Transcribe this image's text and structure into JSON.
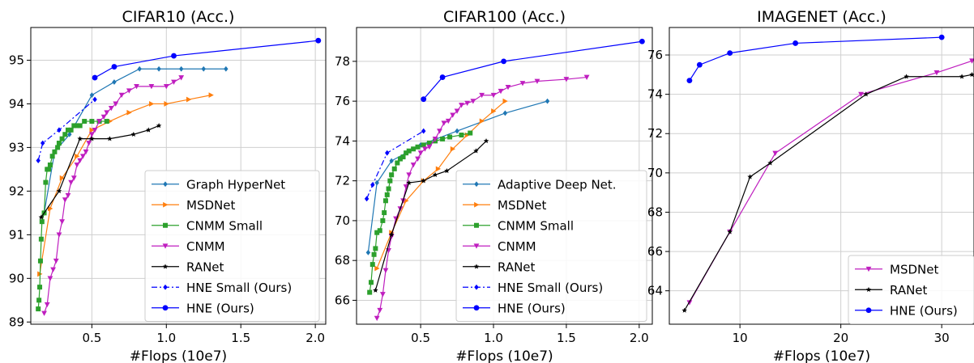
{
  "chart_data": [
    {
      "type": "line",
      "title": "CIFAR10 (Acc.)",
      "xlabel": "#Flops (10e7)",
      "ylabel": "",
      "xlim": [
        0.09,
        2.07
      ],
      "ylim": [
        88.95,
        95.75
      ],
      "xticks": [
        0.5,
        1.0,
        1.5,
        2.0
      ],
      "yticks": [
        89,
        90,
        91,
        92,
        93,
        94,
        95
      ],
      "x_tick_labels": [
        "0.5",
        "1.0",
        "1.5",
        "2.0"
      ],
      "y_tick_labels": [
        "89",
        "90",
        "91",
        "92",
        "93",
        "94",
        "95"
      ],
      "grid": true,
      "legend_position": "lower-right",
      "series": [
        {
          "name": "Graph HyperNet",
          "color": "#1f77b4",
          "marker": "diamond",
          "dash": "",
          "x": [
            0.18,
            0.25,
            0.35,
            0.5,
            0.65,
            0.82,
            0.95,
            1.1,
            1.25,
            1.4
          ],
          "y": [
            91.5,
            92.9,
            93.3,
            94.2,
            94.5,
            94.8,
            94.8,
            94.8,
            94.8,
            94.8
          ]
        },
        {
          "name": "MSDNet",
          "color": "#ff7f0e",
          "marker": "triangle-right",
          "dash": "",
          "x": [
            0.15,
            0.22,
            0.3,
            0.4,
            0.5,
            0.62,
            0.75,
            0.9,
            1.0,
            1.15,
            1.3
          ],
          "y": [
            90.1,
            91.6,
            92.3,
            92.8,
            93.4,
            93.6,
            93.8,
            94.0,
            94.0,
            94.1,
            94.2
          ],
          "labels": [
            "",
            "",
            "",
            "",
            "",
            "",
            "",
            "",
            "",
            "",
            ""
          ]
        },
        {
          "name": "CNMM Small",
          "color": "#2ca02c",
          "marker": "square",
          "dash": "",
          "x": [
            0.14,
            0.145,
            0.15,
            0.155,
            0.16,
            0.165,
            0.18,
            0.19,
            0.2,
            0.21,
            0.22,
            0.235,
            0.25,
            0.27,
            0.28,
            0.3,
            0.32,
            0.34,
            0.36,
            0.38,
            0.4,
            0.42,
            0.45,
            0.5,
            0.55,
            0.6
          ],
          "y": [
            89.3,
            89.5,
            89.8,
            90.4,
            90.9,
            91.3,
            91.5,
            92.2,
            92.5,
            92.5,
            92.6,
            92.8,
            92.9,
            93.0,
            93.1,
            93.2,
            93.3,
            93.4,
            93.4,
            93.5,
            93.5,
            93.5,
            93.6,
            93.6,
            93.6,
            93.6
          ]
        },
        {
          "name": "CNMM",
          "color": "#bf1ebf",
          "marker": "triangle-down",
          "dash": "",
          "x": [
            0.18,
            0.2,
            0.22,
            0.24,
            0.26,
            0.28,
            0.3,
            0.32,
            0.34,
            0.36,
            0.38,
            0.4,
            0.42,
            0.44,
            0.46,
            0.48,
            0.5,
            0.52,
            0.55,
            0.58,
            0.6,
            0.63,
            0.66,
            0.7,
            0.75,
            0.8,
            0.9,
            1.0,
            1.05,
            1.1
          ],
          "y": [
            89.2,
            89.4,
            90.0,
            90.2,
            90.4,
            91.0,
            91.3,
            91.8,
            91.9,
            92.2,
            92.3,
            92.6,
            92.7,
            92.8,
            92.9,
            93.1,
            93.3,
            93.4,
            93.6,
            93.7,
            93.8,
            93.9,
            94.0,
            94.2,
            94.3,
            94.4,
            94.4,
            94.4,
            94.5,
            94.6
          ]
        },
        {
          "name": "RANet",
          "color": "#000000",
          "marker": "star",
          "dash": "",
          "x": [
            0.16,
            0.28,
            0.42,
            0.5,
            0.62,
            0.78,
            0.88,
            0.95
          ],
          "y": [
            91.4,
            92.0,
            93.2,
            93.2,
            93.2,
            93.3,
            93.4,
            93.5
          ]
        },
        {
          "name": "HNE Small (Ours)",
          "color": "#0000ff",
          "marker": "diamond",
          "dash": "7,3,2,3",
          "x": [
            0.14,
            0.17,
            0.28,
            0.52
          ],
          "y": [
            92.7,
            93.1,
            93.4,
            94.1
          ]
        },
        {
          "name": "HNE (Ours)",
          "color": "#0000ff",
          "marker": "circle",
          "dash": "",
          "x": [
            0.52,
            0.65,
            1.05,
            2.02
          ],
          "y": [
            94.6,
            94.85,
            95.1,
            95.45
          ]
        }
      ]
    },
    {
      "type": "line",
      "title": "CIFAR100 (Acc.)",
      "xlabel": "#Flops (10e7)",
      "ylabel": "",
      "xlim": [
        0.06,
        2.09
      ],
      "ylim": [
        64.8,
        79.7
      ],
      "xticks": [
        0.5,
        1.0,
        1.5,
        2.0
      ],
      "yticks": [
        66,
        68,
        70,
        72,
        74,
        76,
        78
      ],
      "x_tick_labels": [
        "0.5",
        "1.0",
        "1.5",
        "2.0"
      ],
      "y_tick_labels": [
        "66",
        "68",
        "70",
        "72",
        "74",
        "76",
        "78"
      ],
      "grid": true,
      "legend_position": "lower-right",
      "series": [
        {
          "name": "Adaptive Deep Net.",
          "color": "#1f77b4",
          "marker": "diamond",
          "dash": "",
          "x": [
            0.14,
            0.2,
            0.3,
            0.5,
            0.75,
            1.08,
            1.37
          ],
          "y": [
            68.4,
            71.9,
            73.0,
            73.8,
            74.5,
            75.4,
            76.0
          ]
        },
        {
          "name": "MSDNet",
          "color": "#ff7f0e",
          "marker": "triangle-right",
          "dash": "",
          "x": [
            0.2,
            0.3,
            0.4,
            0.52,
            0.62,
            0.72,
            0.82,
            0.92,
            1.0,
            1.08
          ],
          "y": [
            67.6,
            69.4,
            71.0,
            72.0,
            72.6,
            73.6,
            74.3,
            75.0,
            75.5,
            76.0
          ]
        },
        {
          "name": "CNMM Small",
          "color": "#2ca02c",
          "marker": "square",
          "dash": "",
          "x": [
            0.15,
            0.16,
            0.17,
            0.18,
            0.19,
            0.2,
            0.22,
            0.24,
            0.25,
            0.26,
            0.27,
            0.28,
            0.29,
            0.3,
            0.32,
            0.34,
            0.36,
            0.38,
            0.4,
            0.42,
            0.45,
            0.48,
            0.52,
            0.56,
            0.6,
            0.65,
            0.7,
            0.78,
            0.84
          ],
          "y": [
            66.4,
            66.9,
            67.8,
            68.3,
            68.6,
            69.4,
            69.5,
            70.0,
            70.4,
            71.0,
            71.3,
            71.6,
            72.0,
            72.3,
            72.6,
            72.9,
            73.1,
            73.2,
            73.4,
            73.5,
            73.6,
            73.7,
            73.8,
            73.9,
            74.0,
            74.1,
            74.2,
            74.3,
            74.4
          ]
        },
        {
          "name": "CNMM",
          "color": "#bf1ebf",
          "marker": "triangle-down",
          "dash": "",
          "x": [
            0.2,
            0.22,
            0.24,
            0.26,
            0.28,
            0.3,
            0.33,
            0.36,
            0.38,
            0.4,
            0.42,
            0.45,
            0.48,
            0.5,
            0.53,
            0.56,
            0.6,
            0.63,
            0.66,
            0.69,
            0.72,
            0.75,
            0.78,
            0.82,
            0.86,
            0.92,
            1.0,
            1.05,
            1.1,
            1.2,
            1.3,
            1.5,
            1.64
          ],
          "y": [
            65.1,
            65.5,
            66.3,
            67.5,
            68.5,
            69.2,
            70.1,
            70.6,
            71.0,
            71.7,
            72.3,
            72.8,
            73.1,
            73.4,
            73.6,
            73.7,
            74.1,
            74.5,
            74.9,
            75.0,
            75.3,
            75.5,
            75.8,
            75.9,
            76.0,
            76.3,
            76.3,
            76.5,
            76.7,
            76.9,
            77.0,
            77.1,
            77.2
          ]
        },
        {
          "name": "RANet",
          "color": "#000000",
          "marker": "star",
          "dash": "",
          "x": [
            0.19,
            0.3,
            0.42,
            0.52,
            0.6,
            0.68,
            0.88,
            0.95
          ],
          "y": [
            66.5,
            69.3,
            71.9,
            72.0,
            72.3,
            72.5,
            73.5,
            74.0
          ]
        },
        {
          "name": "HNE Small (Ours)",
          "color": "#0000ff",
          "marker": "diamond",
          "dash": "7,3,2,3",
          "x": [
            0.13,
            0.17,
            0.27,
            0.52
          ],
          "y": [
            71.1,
            71.8,
            73.4,
            74.5
          ]
        },
        {
          "name": "HNE (Ours)",
          "color": "#0000ff",
          "marker": "circle",
          "dash": "",
          "x": [
            0.52,
            0.65,
            1.07,
            2.02
          ],
          "y": [
            76.1,
            77.2,
            78.0,
            79.0
          ]
        }
      ]
    },
    {
      "type": "line",
      "title": "IMAGENET (Acc.)",
      "xlabel": "#Flops (10e7)",
      "ylabel": "",
      "xlim": [
        3.0,
        33.2
      ],
      "ylim": [
        62.3,
        77.4
      ],
      "xticks": [
        10,
        20,
        30
      ],
      "yticks": [
        64,
        66,
        68,
        70,
        72,
        74,
        76
      ],
      "x_tick_labels": [
        "10",
        "20",
        "30"
      ],
      "y_tick_labels": [
        "64",
        "66",
        "68",
        "70",
        "72",
        "74",
        "76"
      ],
      "grid": true,
      "legend_position": "lower-right",
      "series": [
        {
          "name": "MSDNet",
          "color": "#bf1ebf",
          "marker": "triangle-down",
          "dash": "",
          "x": [
            5.0,
            9.0,
            13.5,
            22.0,
            29.5,
            33.0
          ],
          "y": [
            63.4,
            67.0,
            71.0,
            74.0,
            75.1,
            75.7
          ]
        },
        {
          "name": "RANet",
          "color": "#000000",
          "marker": "star",
          "dash": "",
          "x": [
            4.5,
            9.0,
            11.0,
            13.0,
            22.5,
            26.5,
            32.0,
            33.0
          ],
          "y": [
            63.0,
            67.0,
            69.8,
            70.5,
            74.0,
            74.9,
            74.9,
            75.0
          ]
        },
        {
          "name": "HNE (Ours)",
          "color": "#0000ff",
          "marker": "circle",
          "dash": "",
          "x": [
            5.0,
            6.0,
            9.0,
            15.5,
            30.0
          ],
          "y": [
            74.7,
            75.5,
            76.1,
            76.6,
            76.9
          ]
        }
      ]
    }
  ]
}
